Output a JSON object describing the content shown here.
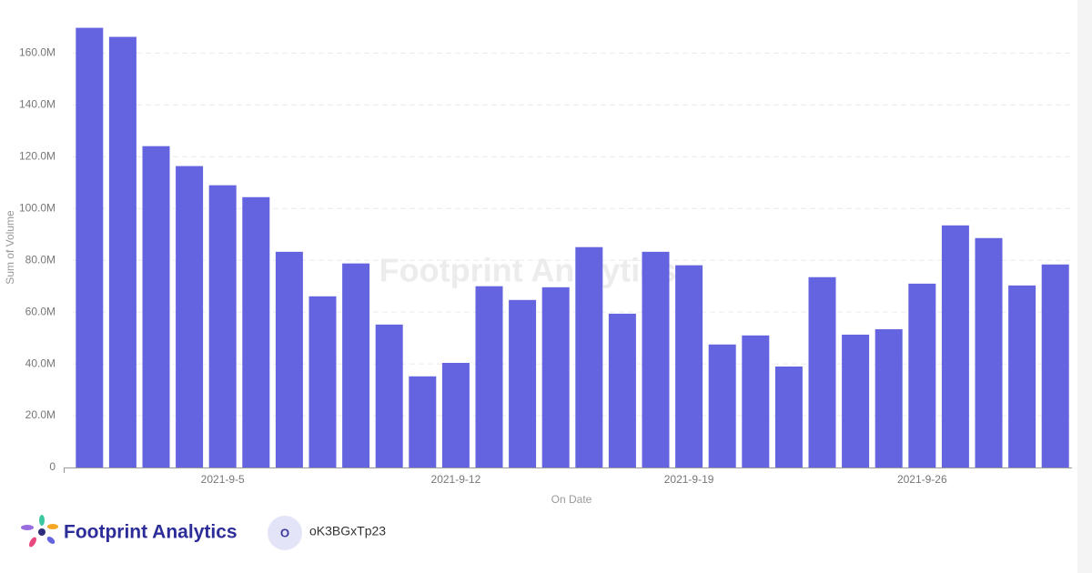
{
  "chart_data": {
    "type": "bar",
    "watermark": "Footprint Analytics",
    "y_label": "Sum of Volume",
    "x_label": "On Date",
    "categories": [
      null,
      null,
      null,
      null,
      "2021-9-5",
      null,
      null,
      null,
      null,
      null,
      null,
      "2021-9-12",
      null,
      null,
      null,
      null,
      null,
      null,
      "2021-9-19",
      null,
      null,
      null,
      null,
      null,
      null,
      "2021-9-26",
      null,
      null,
      null,
      null
    ],
    "values": [
      169800000,
      166300000,
      124100000,
      116400000,
      109000000,
      104400000,
      83300000,
      66100000,
      78800000,
      55200000,
      35200000,
      40400000,
      70000000,
      64700000,
      69600000,
      85100000,
      59400000,
      83300000,
      78100000,
      47500000,
      51000000,
      39000000,
      73500000,
      51300000,
      53400000,
      71000000,
      93500000,
      88600000,
      70300000,
      78400000
    ],
    "color": "#6464e0",
    "ylim": [
      0,
      170000000
    ],
    "yticks": [
      0,
      {
        "value": 20000000,
        "label": "20.0M"
      },
      {
        "value": 40000000,
        "label": "40.0M"
      },
      {
        "value": 60000000,
        "label": "60.0M"
      },
      {
        "value": 80000000,
        "label": "80.0M"
      },
      {
        "value": 100000000,
        "label": "100.0M"
      },
      {
        "value": 120000000,
        "label": "120.0M"
      },
      {
        "value": 140000000,
        "label": "140.0M"
      },
      {
        "value": 160000000,
        "label": "160.0M"
      }
    ],
    "grid": true
  },
  "footer": {
    "brand": "Footprint Analytics",
    "avatar": "O",
    "user": "oK3BGxTp23"
  }
}
